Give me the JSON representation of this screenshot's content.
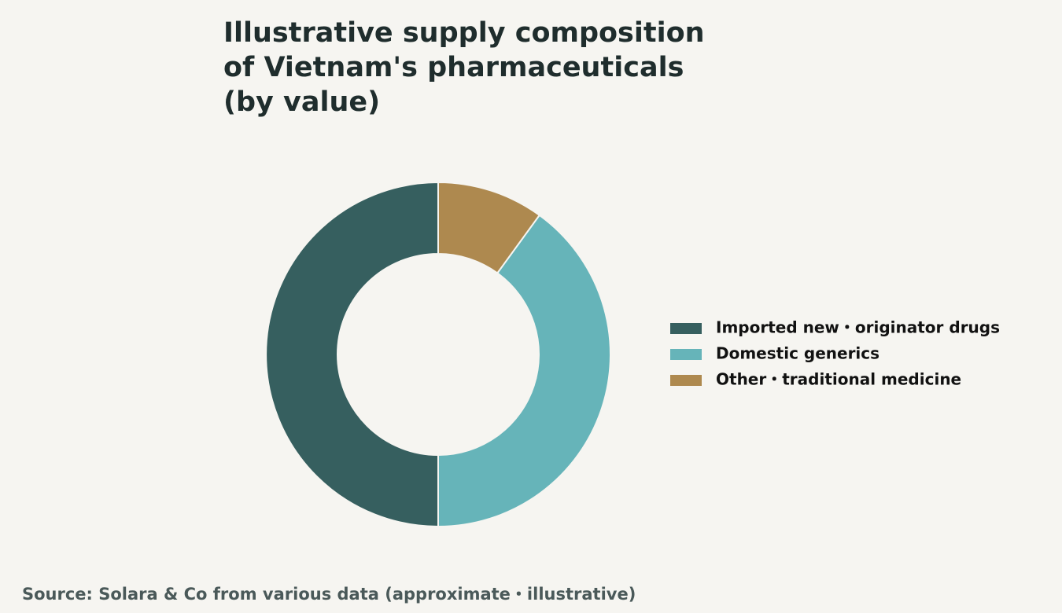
{
  "chart_data": {
    "type": "pie",
    "title": "Illustrative supply composition of Vietnam's pharmaceuticals (by value)",
    "categories": [
      "Imported new・originator drugs",
      "Domestic generics",
      "Other・traditional medicine"
    ],
    "values": [
      50,
      40,
      10
    ],
    "colors": [
      "#365f5f",
      "#66b4b9",
      "#ae894f"
    ],
    "donut": true,
    "direction": "counterclockwise",
    "legend": "right",
    "source": "Source: Solara & Co from various data (approximate・illustrative)"
  }
}
